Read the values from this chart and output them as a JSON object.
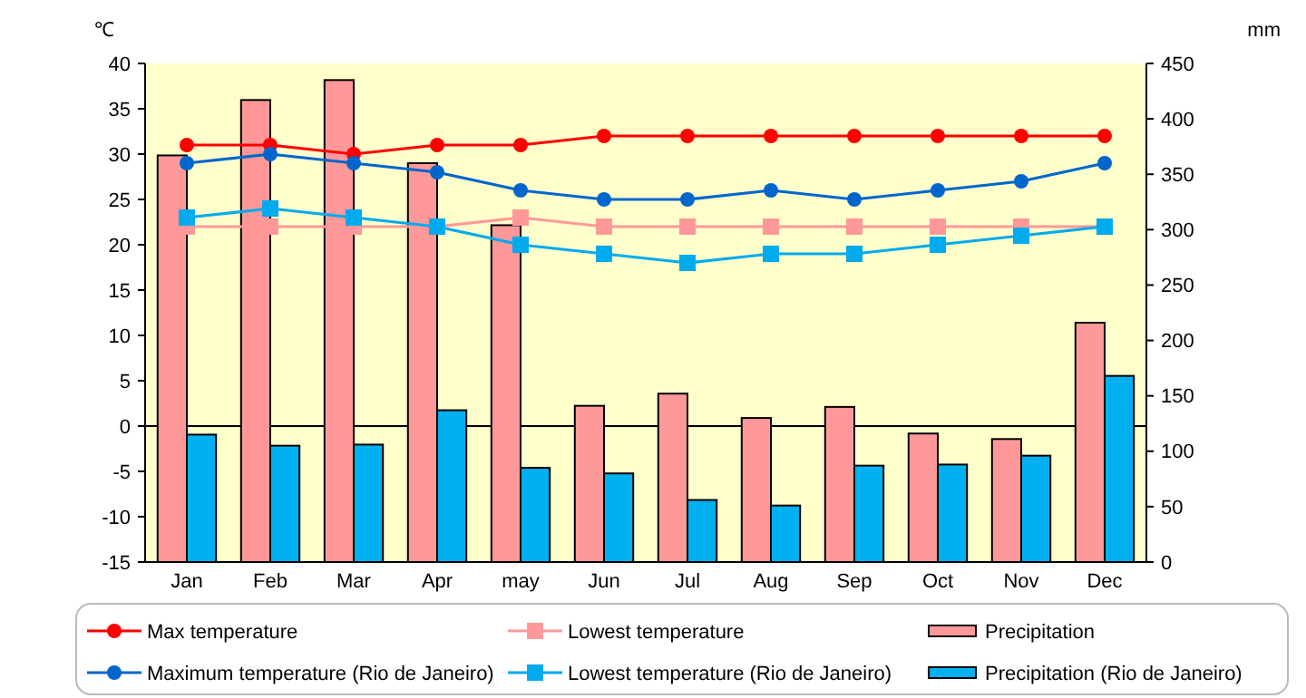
{
  "chart_data": {
    "type": "bar",
    "ylabel": "℃",
    "y2label": "mm",
    "categories": [
      "Jan",
      "Feb",
      "Mar",
      "Apr",
      "may",
      "Jun",
      "Jul",
      "Aug",
      "Sep",
      "Oct",
      "Nov",
      "Dec"
    ],
    "series": [
      {
        "name": "Max temperature",
        "type": "line",
        "color": "#ff0000",
        "marker": "circle",
        "values": [
          31,
          31,
          30,
          31,
          31,
          32,
          32,
          32,
          32,
          32,
          32,
          32
        ]
      },
      {
        "name": "Lowest temperature",
        "type": "line",
        "color": "#ff9999",
        "marker": "square",
        "values": [
          22,
          22,
          22,
          22,
          23,
          22,
          22,
          22,
          22,
          22,
          22,
          22
        ]
      },
      {
        "name": "Precipitation",
        "axis": "y2",
        "color": "#ff9999",
        "values": [
          367,
          417,
          435,
          360,
          304,
          141,
          152,
          130,
          140,
          116,
          111,
          216
        ]
      },
      {
        "name": "Maximum temperature (Rio de Janeiro)",
        "type": "line",
        "color": "#0066cc",
        "marker": "circle",
        "values": [
          29,
          30,
          29,
          28,
          26,
          25,
          25,
          26,
          25,
          26,
          27,
          29
        ]
      },
      {
        "name": "Lowest temperature (Rio de Janeiro)",
        "type": "line",
        "color": "#00aaee",
        "marker": "square",
        "values": [
          23,
          24,
          23,
          22,
          20,
          19,
          18,
          19,
          19,
          20,
          21,
          22
        ]
      },
      {
        "name": "Precipitation (Rio de Janeiro)",
        "axis": "y2",
        "color": "#00b0f0",
        "values": [
          115,
          105,
          106,
          137,
          85,
          80,
          56,
          51,
          87,
          88,
          96,
          168
        ]
      }
    ],
    "ylim": [
      -15,
      40
    ],
    "yticks": [
      -15,
      -10,
      -5,
      0,
      5,
      10,
      15,
      20,
      25,
      30,
      35,
      40
    ],
    "y2lim": [
      0,
      450
    ],
    "y2ticks": [
      0,
      50,
      100,
      150,
      200,
      250,
      300,
      350,
      400,
      450
    ],
    "ref_lines": [
      {
        "axis": "y",
        "value": 0,
        "color": "#000000"
      }
    ],
    "grid": false,
    "legend": "bottom"
  }
}
